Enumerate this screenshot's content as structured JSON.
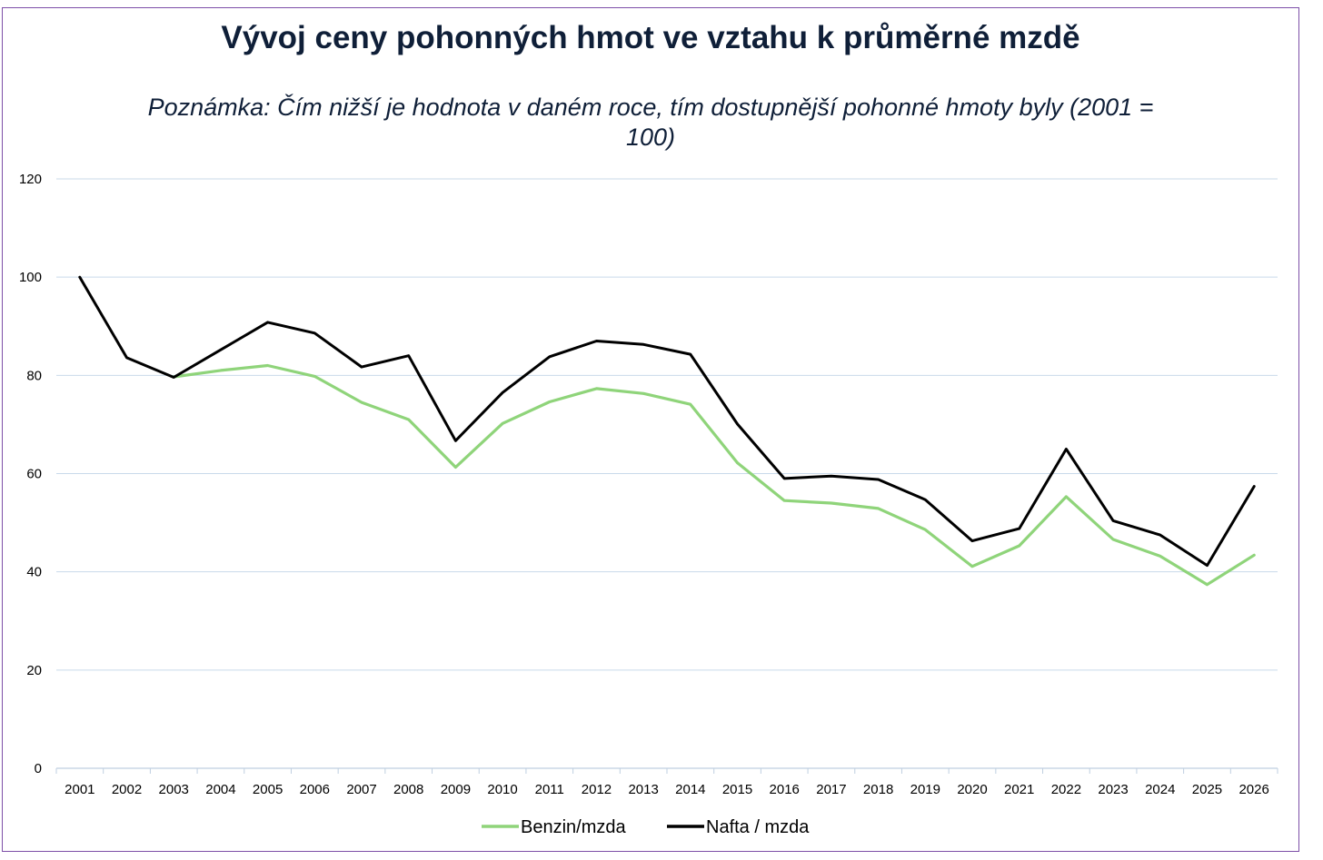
{
  "chart_data": {
    "type": "line",
    "title": "Vývoj ceny pohonných hmot ve vztahu k průměrné mzdě",
    "subtitle": "Poznámka: Čím nižší je hodnota v daném roce, tím dostupnější pohonné hmoty byly (2001 = 100)",
    "xlabel": "",
    "ylabel": "",
    "ylim": [
      0,
      120
    ],
    "yticks": [
      0,
      20,
      40,
      60,
      80,
      100,
      120
    ],
    "grid": true,
    "legend_position": "bottom",
    "categories": [
      "2001",
      "2002",
      "2003",
      "2004",
      "2005",
      "2006",
      "2007",
      "2008",
      "2009",
      "2010",
      "2011",
      "2012",
      "2013",
      "2014",
      "2015",
      "2016",
      "2017",
      "2018",
      "2019",
      "2020",
      "2021",
      "2022",
      "2023",
      "2024",
      "2025",
      "2026"
    ],
    "series": [
      {
        "name": "Benzin/mzda",
        "color": "#8fd47a",
        "values": [
          null,
          null,
          79.7,
          81,
          82,
          79.8,
          74.5,
          71,
          61.3,
          70.2,
          74.6,
          77.3,
          76.3,
          74.1,
          62.2,
          54.5,
          54,
          52.9,
          48.6,
          41.1,
          45.3,
          55.3,
          46.6,
          43.2,
          37.4,
          43.4
        ]
      },
      {
        "name": "Nafta / mzda",
        "color": "#000000",
        "values": [
          100,
          83.6,
          79.6,
          85.2,
          90.8,
          88.6,
          81.7,
          84,
          66.7,
          76.5,
          83.8,
          87,
          86.3,
          84.3,
          70.1,
          59,
          59.5,
          58.8,
          54.7,
          46.3,
          48.8,
          65,
          50.4,
          47.5,
          41.3,
          57.4
        ]
      }
    ]
  }
}
